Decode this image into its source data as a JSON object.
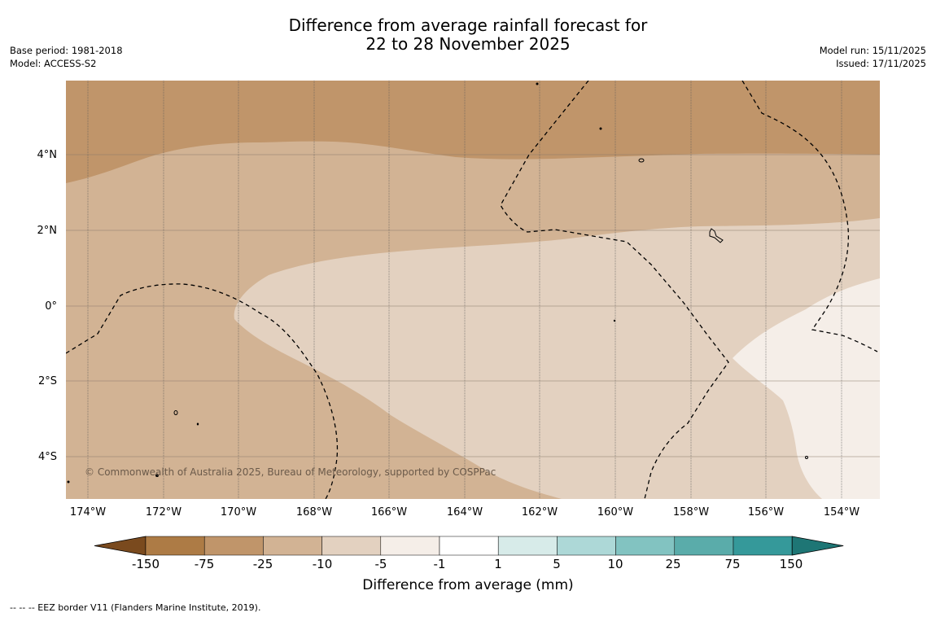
{
  "title": {
    "line1": "Difference from average rainfall forecast for",
    "line2": "22 to 28 November 2025"
  },
  "meta": {
    "base_period": "Base period: 1981-2018",
    "model": "Model: ACCESS-S2",
    "model_run": "Model run: 15/11/2025",
    "issued": "Issued: 17/11/2025"
  },
  "map": {
    "lat_labels": [
      "4°N",
      "2°N",
      "0°",
      "2°S",
      "4°S"
    ],
    "lon_labels": [
      "174°W",
      "172°W",
      "170°W",
      "168°W",
      "166°W",
      "164°W",
      "162°W",
      "160°W",
      "158°W",
      "156°W",
      "154°W"
    ],
    "copyright": "© Commonwealth of Australia 2025, Bureau of Meteorology, supported by COSPPac"
  },
  "colorbar": {
    "title": "Difference from average (mm)",
    "ticks": [
      "-150",
      "-75",
      "-25",
      "-10",
      "-5",
      "-1",
      "1",
      "5",
      "10",
      "25",
      "75",
      "150"
    ],
    "colors": [
      "#7a4a1e",
      "#ad7b45",
      "#c0956a",
      "#d2b394",
      "#e3d1c0",
      "#f5eee8",
      "#ffffff",
      "#d7ebe9",
      "#add8d7",
      "#82c3c1",
      "#5aacaa",
      "#35999a",
      "#1e7675"
    ],
    "map_colors": {
      "dark": "#c0956a",
      "mid": "#d2b394",
      "light": "#e3d1c0",
      "lightest": "#f5eee8"
    }
  },
  "footer": "--  --  -- EEZ border V11 (Flanders Marine Institute, 2019)."
}
